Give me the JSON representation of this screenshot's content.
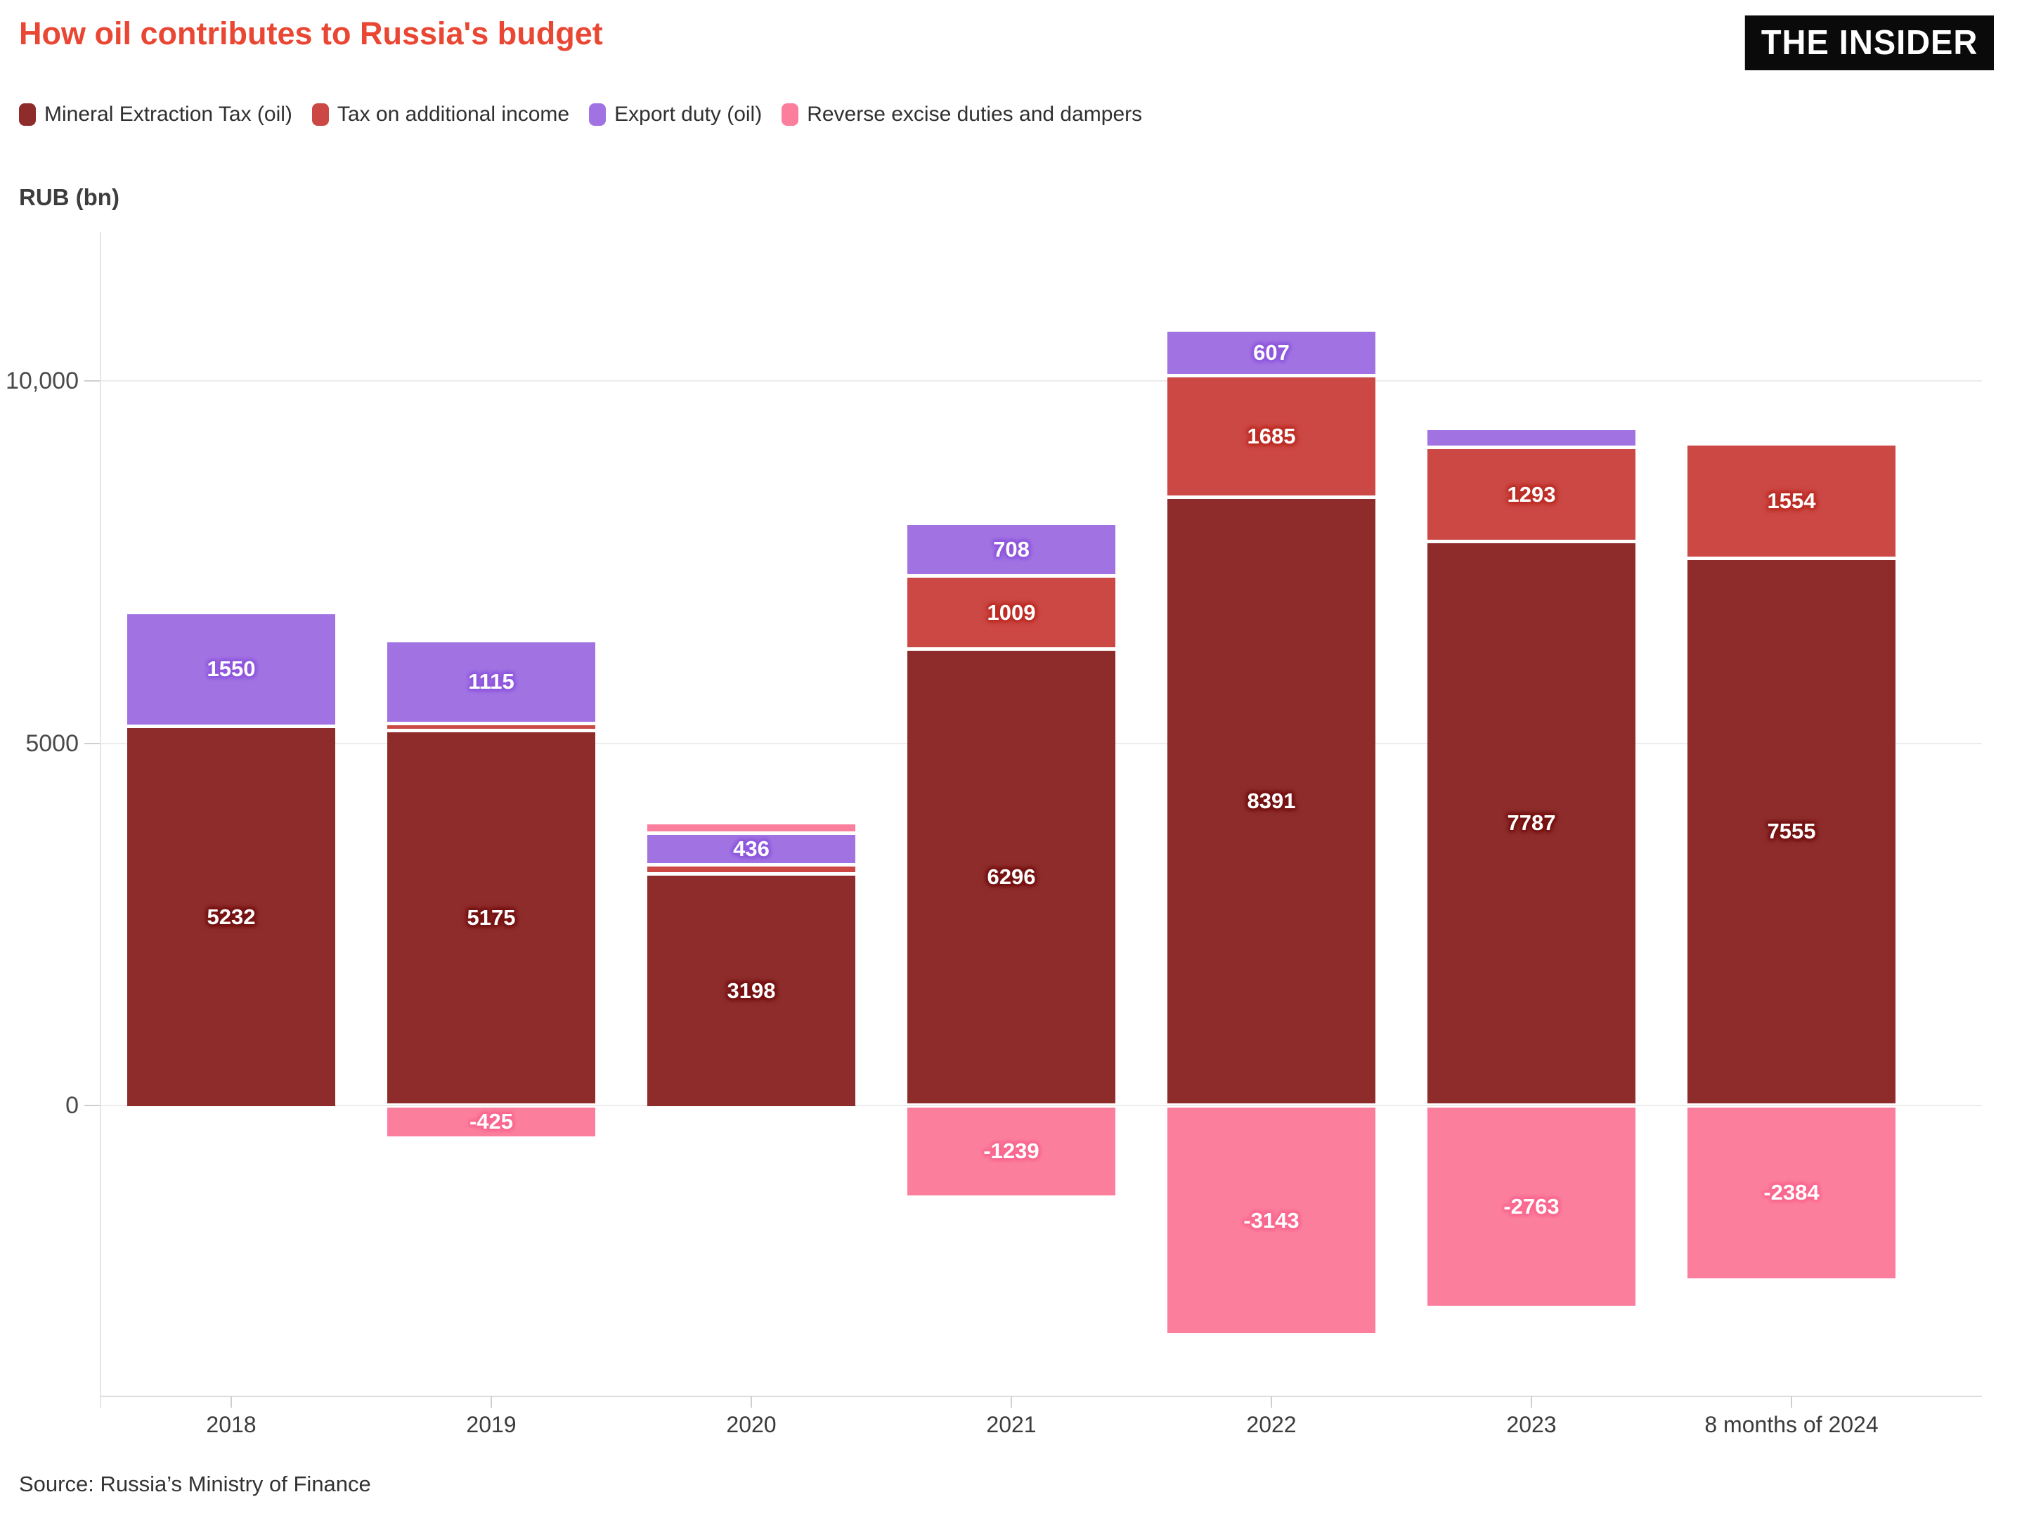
{
  "title": "How oil contributes to Russia's budget",
  "logo_text": "THE INSIDER",
  "source": "Source: Russia’s Ministry of Finance",
  "chart_data": {
    "type": "bar",
    "stacked": true,
    "title": "How oil contributes to Russia's budget",
    "xlabel": "",
    "ylabel": "RUB (bn)",
    "categories": [
      "2018",
      "2019",
      "2020",
      "2021",
      "2022",
      "2023",
      "8 months of 2024"
    ],
    "series": [
      {
        "name": "Mineral Extraction Tax (oil)",
        "color": "#8e2c2c",
        "halo": "#771414",
        "values": [
          5232,
          5175,
          3198,
          6296,
          8391,
          7787,
          7555
        ],
        "labels": [
          "5232",
          "5175",
          "3198",
          "6296",
          "8391",
          "7787",
          "7555"
        ]
      },
      {
        "name": "Tax on additional income",
        "color": "#cb4844",
        "halo": "#bd2f27",
        "values": [
          0,
          100,
          126,
          1009,
          1685,
          1293,
          1554
        ],
        "labels": [
          null,
          null,
          null,
          "1009",
          "1685",
          "1293",
          "1554"
        ]
      },
      {
        "name": "Export duty (oil)",
        "color": "#a173e2",
        "halo": "#8f58dd",
        "values": [
          1550,
          1115,
          436,
          708,
          607,
          240,
          0
        ],
        "labels": [
          "1550",
          "1115",
          "436",
          "708",
          "607",
          null,
          null
        ]
      },
      {
        "name": "Reverse excise duties and dampers",
        "color": "#fb7f9d",
        "halo": "#fa6890",
        "values": [
          0,
          -425,
          120,
          -1239,
          -3143,
          -2763,
          -2384
        ],
        "labels": [
          null,
          "-425",
          null,
          "-1239",
          "-3143",
          "-2763",
          "-2384"
        ]
      }
    ],
    "y_ticks": [
      {
        "value": 0,
        "label": "0"
      },
      {
        "value": 5000,
        "label": "5000"
      },
      {
        "value": 10000,
        "label": "10,000"
      }
    ],
    "ylim": [
      -3600,
      12000
    ],
    "grid": true,
    "legend_position": "top"
  }
}
